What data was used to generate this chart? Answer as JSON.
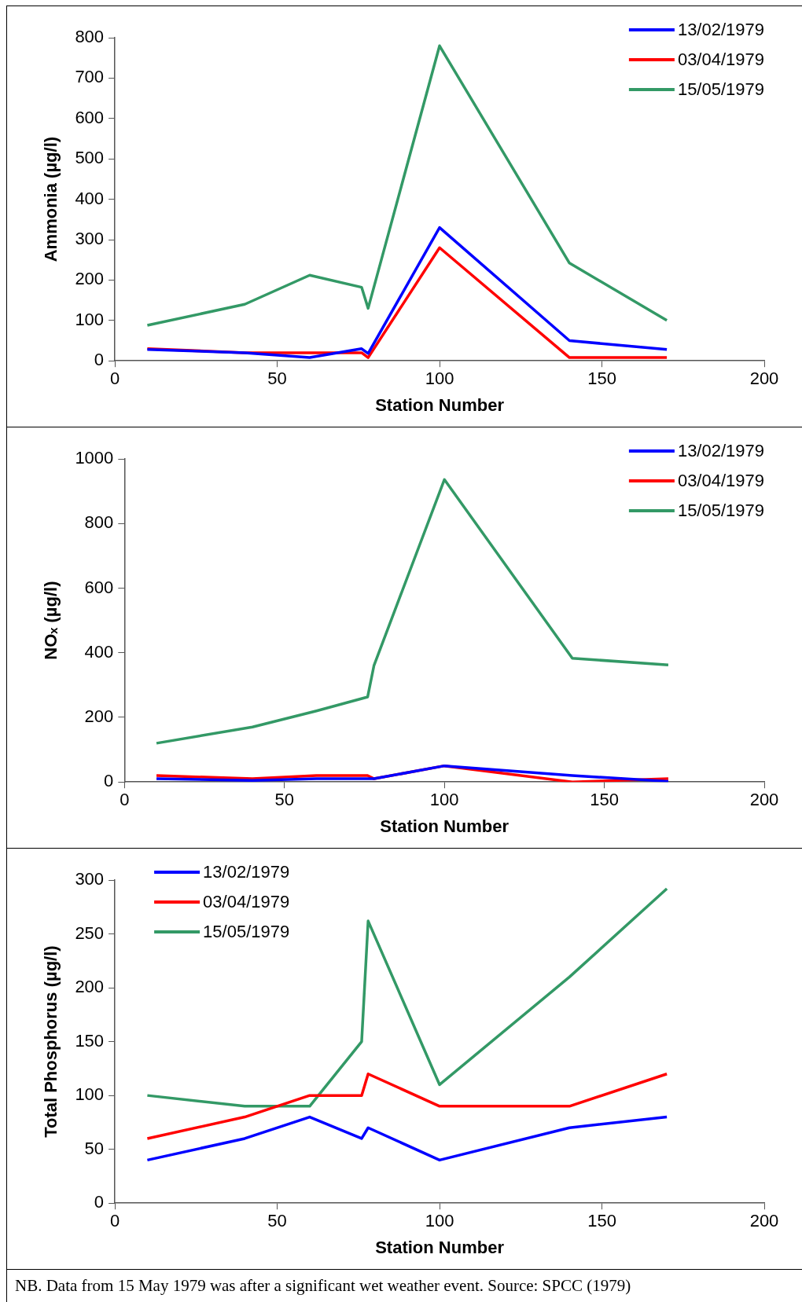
{
  "chart_data": [
    {
      "type": "line",
      "xlabel": "Station Number",
      "ylabel": "Ammonia (µg/l)",
      "x": [
        10,
        40,
        60,
        76,
        78,
        100,
        140,
        170
      ],
      "xlim": [
        0,
        200
      ],
      "xticks": [
        0,
        50,
        100,
        150,
        200
      ],
      "ylim": [
        0,
        800
      ],
      "yticks": [
        0,
        100,
        200,
        300,
        400,
        500,
        600,
        700,
        800
      ],
      "legend": "top right",
      "marker": "none",
      "series": [
        {
          "name": "13/02/1979",
          "color": "#0000ff",
          "values": [
            28,
            20,
            8,
            30,
            18,
            330,
            50,
            28
          ]
        },
        {
          "name": "03/04/1979",
          "color": "#ff0000",
          "values": [
            30,
            20,
            20,
            20,
            8,
            280,
            8,
            8
          ]
        },
        {
          "name": "15/05/1979",
          "color": "#339966",
          "values": [
            88,
            140,
            212,
            182,
            130,
            780,
            242,
            100
          ]
        }
      ]
    },
    {
      "type": "line",
      "xlabel": "Station Number",
      "ylabel": "NOₓ (µg/l)",
      "x": [
        10,
        40,
        60,
        76,
        78,
        100,
        140,
        170
      ],
      "xlim": [
        0,
        200
      ],
      "xticks": [
        0,
        50,
        100,
        150,
        200
      ],
      "ylim": [
        0,
        1000
      ],
      "yticks": [
        0,
        200,
        400,
        600,
        800,
        1000
      ],
      "legend": "top right",
      "marker": "none",
      "series": [
        {
          "name": "13/02/1979",
          "color": "#0000ff",
          "values": [
            10,
            5,
            10,
            10,
            10,
            50,
            20,
            2
          ]
        },
        {
          "name": "03/04/1979",
          "color": "#ff0000",
          "values": [
            20,
            10,
            20,
            20,
            10,
            50,
            0,
            10
          ]
        },
        {
          "name": "15/05/1979",
          "color": "#339966",
          "values": [
            120,
            170,
            220,
            263,
            361,
            936,
            383,
            362
          ]
        }
      ]
    },
    {
      "type": "line",
      "xlabel": "Station Number",
      "ylabel": "Total Phosphorus (µg/l)",
      "x": [
        10,
        40,
        60,
        76,
        78,
        100,
        140,
        170
      ],
      "xlim": [
        0,
        200
      ],
      "xticks": [
        0,
        50,
        100,
        150,
        200
      ],
      "ylim": [
        0,
        300
      ],
      "yticks": [
        0,
        50,
        100,
        150,
        200,
        250,
        300
      ],
      "legend": "top left",
      "marker": "none",
      "annotations": [
        "NB. Data from 15 May 1979 was after a significant wet weather event. Source: SPCC (1979)"
      ],
      "series": [
        {
          "name": "13/02/1979",
          "color": "#0000ff",
          "values": [
            40,
            60,
            80,
            60,
            70,
            40,
            70,
            80
          ]
        },
        {
          "name": "03/04/1979",
          "color": "#ff0000",
          "values": [
            60,
            80,
            100,
            100,
            120,
            90,
            90,
            120
          ]
        },
        {
          "name": "15/05/1979",
          "color": "#339966",
          "values": [
            100,
            90,
            90,
            150,
            262,
            110,
            210,
            292
          ]
        }
      ]
    }
  ]
}
